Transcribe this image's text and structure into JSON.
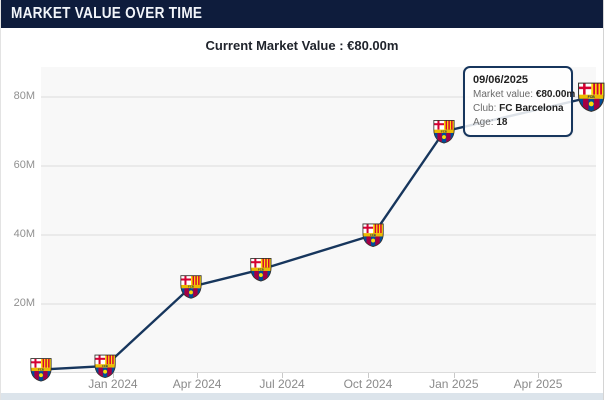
{
  "header": {
    "title": "MARKET VALUE OVER TIME"
  },
  "subtitle": {
    "text": "Current Market Value : €80.00m"
  },
  "tooltip": {
    "date": "09/06/2025",
    "rows": [
      {
        "label": "Market value: ",
        "value": "€80.00m"
      },
      {
        "label": "Club: ",
        "value": "FC Barcelona"
      },
      {
        "label": "Age: ",
        "value": "18"
      }
    ]
  },
  "chart_data": {
    "type": "line",
    "title": "Market value over time",
    "y_unit": "€ million",
    "ylim": [
      0,
      88.7
    ],
    "grid": true,
    "legend": null,
    "marker": "fc-barcelona-crest-icon",
    "x_domain_decimal_year": [
      2023.789,
      2025.417
    ],
    "x_ticks": [
      {
        "t": 2024.0,
        "label": "Jan 2024"
      },
      {
        "t": 2024.247,
        "label": "Apr 2024"
      },
      {
        "t": 2024.496,
        "label": "Jul 2024"
      },
      {
        "t": 2024.748,
        "label": "Oct 2024"
      },
      {
        "t": 2025.0,
        "label": "Jan 2025"
      },
      {
        "t": 2025.247,
        "label": "Apr 2025"
      }
    ],
    "y_ticks": [
      {
        "value": 20,
        "label": "20M"
      },
      {
        "value": 40,
        "label": "40M"
      },
      {
        "value": 60,
        "label": "60M"
      },
      {
        "value": 80,
        "label": "80M"
      }
    ],
    "series": [
      {
        "name": "Market value (€m)",
        "points": [
          {
            "t": 2023.789,
            "value_m": 1,
            "date_approx": "Oct 2023"
          },
          {
            "t": 2023.977,
            "value_m": 2,
            "date_approx": "Dec 2023"
          },
          {
            "t": 2024.229,
            "value_m": 25,
            "date_approx": "Mar 2024"
          },
          {
            "t": 2024.434,
            "value_m": 30,
            "date_approx": "Jun 2024"
          },
          {
            "t": 2024.763,
            "value_m": 40,
            "date_approx": "Oct 2024"
          },
          {
            "t": 2024.971,
            "value_m": 70,
            "date_approx": "Dec 2024"
          },
          {
            "t": 2025.403,
            "value_m": 80,
            "date": "09/06/2025"
          }
        ]
      }
    ]
  },
  "colors": {
    "header_bg": "#0e1c3c",
    "header_text": "#f2f5fa",
    "line": "#17365d",
    "plot_bg": "#f8f8f8",
    "grid": "#dcdcdc",
    "axis_label": "#909090",
    "subtitle_text": "#20242c",
    "tooltip_border": "#17365d",
    "bottom_strip": "#dce4eb",
    "crest_blue": "#004d98",
    "crest_garnet": "#a50044",
    "crest_red": "#d50032",
    "crest_yellow": "#fcdd09",
    "crest_gold": "#edbb00"
  }
}
